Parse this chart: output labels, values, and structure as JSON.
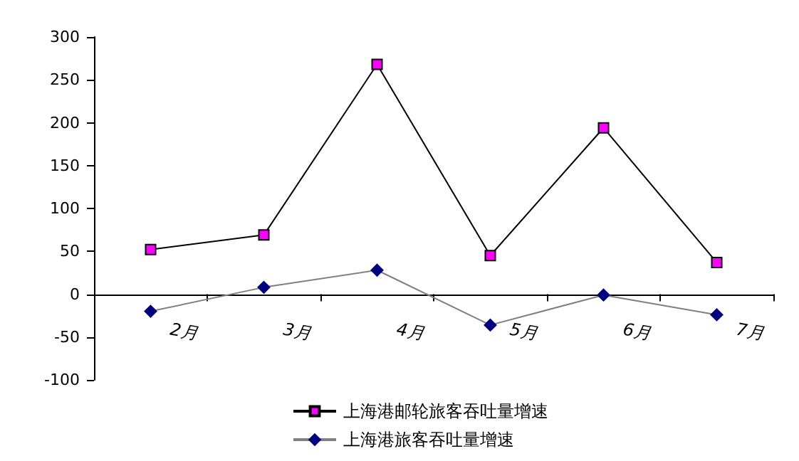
{
  "chart_data": {
    "type": "line",
    "categories": [
      "2月",
      "3月",
      "4月",
      "5月",
      "6月",
      "7月"
    ],
    "series": [
      {
        "name": "上海港邮轮旅客吞吐量增速",
        "color": "#ff00ff",
        "marker": "square",
        "values": [
          52,
          69,
          268,
          45,
          194,
          37
        ]
      },
      {
        "name": "上海港旅客吞吐量增速",
        "color": "#000080",
        "marker": "diamond",
        "values": [
          -20,
          8,
          28,
          -36,
          -1,
          -24
        ]
      }
    ],
    "ylim": [
      -100,
      300
    ],
    "yticks": [
      -100,
      -50,
      0,
      50,
      100,
      150,
      200,
      250,
      300
    ],
    "grid": false,
    "legend": "bottom"
  }
}
